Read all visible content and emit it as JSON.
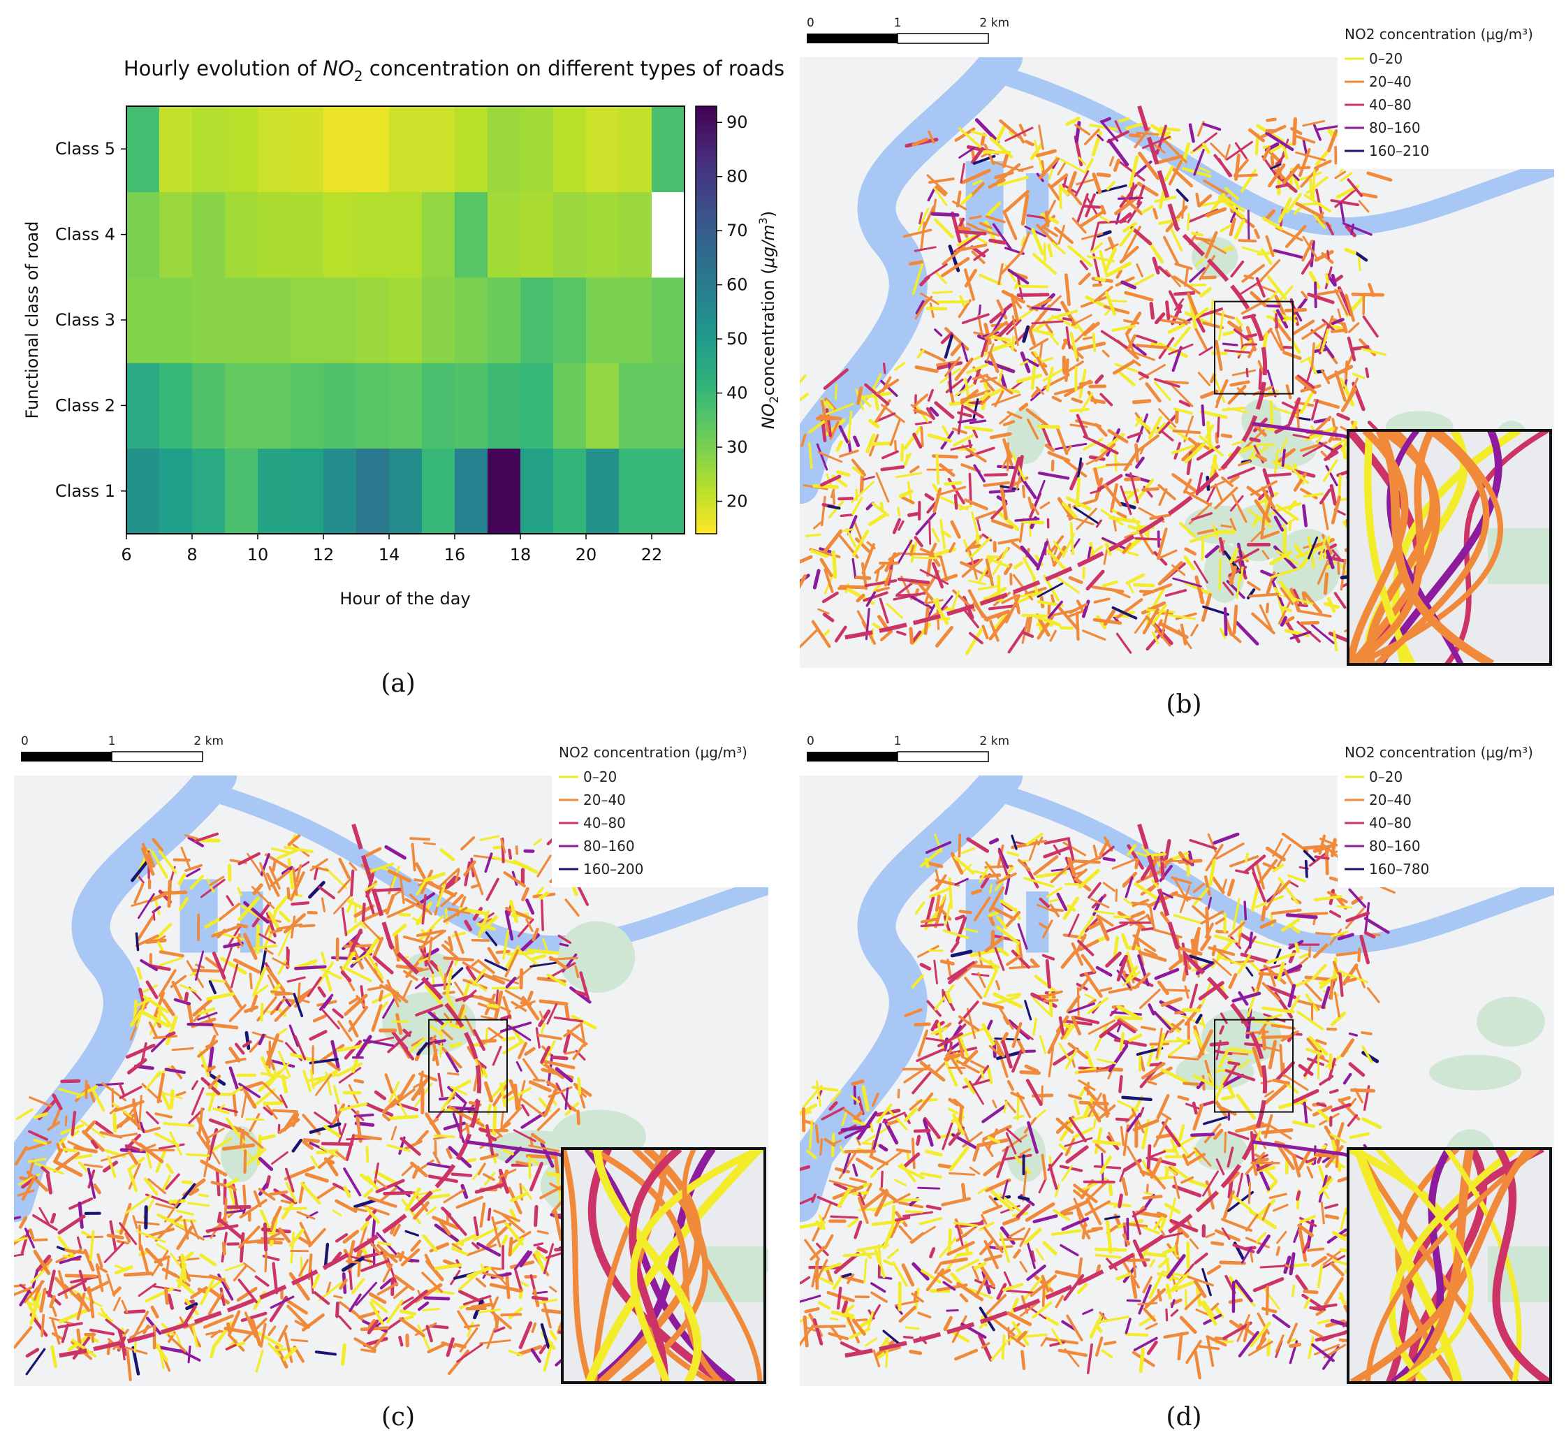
{
  "chart_data": [
    {
      "type": "heatmap",
      "title": "Hourly evolution of NO2 concentration on different types of roads",
      "title_parts": {
        "pre": "Hourly evolution of ",
        "italic": "NO",
        "sub": "2",
        "post": " concentration on different types of roads"
      },
      "xlabel": "Hour of the day",
      "ylabel": "Functional class of road",
      "colorbar_label": {
        "italic_pre": "NO",
        "sub": "2",
        "rest": "concentration (",
        "unit_italic": "μg/m",
        "sup": "3",
        "close": ")"
      },
      "xlim": [
        6,
        23
      ],
      "x_ticks": [
        "6",
        "8",
        "10",
        "12",
        "14",
        "16",
        "18",
        "20",
        "22"
      ],
      "x_tick_values": [
        6,
        8,
        10,
        12,
        14,
        16,
        18,
        20,
        22
      ],
      "hours": [
        6,
        7,
        8,
        9,
        10,
        11,
        12,
        13,
        14,
        15,
        16,
        17,
        18,
        19,
        20,
        21,
        22
      ],
      "rows": [
        "Class 1",
        "Class 2",
        "Class 3",
        "Class 4",
        "Class 5"
      ],
      "values": [
        [
          53,
          49,
          45,
          37,
          47,
          48,
          54,
          61,
          55,
          40,
          58,
          92,
          48,
          41,
          53,
          40,
          40
        ],
        [
          45,
          40,
          36,
          33,
          33,
          35,
          36,
          35,
          34,
          37,
          36,
          39,
          40,
          32,
          27,
          33,
          33
        ],
        [
          29,
          29,
          28,
          28,
          28,
          27,
          27,
          26,
          25,
          28,
          30,
          32,
          37,
          35,
          30,
          30,
          32
        ],
        [
          30,
          26,
          28,
          25,
          24,
          24,
          22,
          23,
          23,
          27,
          35,
          25,
          24,
          26,
          25,
          26,
          null
        ],
        [
          38,
          21,
          23,
          22,
          20,
          19,
          16,
          16,
          20,
          20,
          22,
          26,
          25,
          22,
          20,
          21,
          37
        ]
      ],
      "vmin": 14,
      "vmax": 93,
      "colorbar_ticks": [
        "20",
        "30",
        "40",
        "50",
        "60",
        "70",
        "80",
        "90"
      ],
      "colorbar_tick_values": [
        20,
        30,
        40,
        50,
        60,
        70,
        80,
        90
      ],
      "colormap": "viridis_r",
      "caption": "(a)"
    }
  ],
  "maps": [
    {
      "id": "b",
      "caption": "(b)",
      "legend_title": "NO2 concentration (μg/m³)",
      "legend": [
        "0–20",
        "20–40",
        "40–80",
        "80–160",
        "160–210"
      ],
      "scale": [
        "0",
        "1",
        "2 km"
      ],
      "intensity": 0.55
    },
    {
      "id": "c",
      "caption": "(c)",
      "legend_title": "NO2 concentration (μg/m³)",
      "legend": [
        "0–20",
        "20–40",
        "40–80",
        "80–160",
        "160–200"
      ],
      "scale": [
        "0",
        "1",
        "2 km"
      ],
      "intensity": 0.7
    },
    {
      "id": "d",
      "caption": "(d)",
      "legend_title": "NO2 concentration (μg/m³)",
      "legend": [
        "0–20",
        "20–40",
        "40–80",
        "80–160",
        "160–780"
      ],
      "scale": [
        "0",
        "1",
        "2 km"
      ],
      "intensity": 0.62
    }
  ],
  "legend_colors": [
    "#f2ec2a",
    "#f08a3a",
    "#cc3366",
    "#8e1a9e",
    "#1a1570"
  ],
  "map_colors": {
    "land": "#f1f2f4",
    "water": "#a8c7f5",
    "park": "#cfe6d4",
    "label": "#8a8f96"
  }
}
